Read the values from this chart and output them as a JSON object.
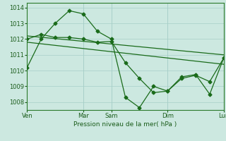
{
  "bg_color": "#cce8e0",
  "grid_color": "#a8cfc8",
  "line_color": "#1a6b1a",
  "xlabel": "Pression niveau de la mer( hPa )",
  "ylim": [
    1007.5,
    1014.3
  ],
  "yticks": [
    1008,
    1009,
    1010,
    1011,
    1012,
    1013,
    1014
  ],
  "xtick_labels": [
    "Ven",
    "Mar",
    "Sam",
    "Dim",
    "Lun"
  ],
  "xtick_positions": [
    0,
    4,
    6,
    10,
    14
  ],
  "series1": {
    "x": [
      0,
      1,
      2,
      3,
      4,
      5,
      6,
      7,
      8,
      9,
      10,
      11,
      12,
      13,
      14
    ],
    "y": [
      1010.2,
      1012.0,
      1013.0,
      1013.8,
      1013.6,
      1012.5,
      1012.0,
      1008.3,
      1007.65,
      1009.0,
      1008.7,
      1009.6,
      1009.75,
      1008.5,
      1010.8
    ]
  },
  "series2": {
    "x": [
      0,
      1,
      2,
      3,
      4,
      5,
      6,
      7,
      8,
      9,
      10,
      11,
      12,
      13,
      14
    ],
    "y": [
      1012.0,
      1012.3,
      1012.1,
      1012.1,
      1012.0,
      1011.8,
      1011.85,
      1010.5,
      1009.5,
      1008.6,
      1008.7,
      1009.5,
      1009.7,
      1009.3,
      1010.8
    ]
  },
  "trend1": {
    "x": [
      0,
      14
    ],
    "y": [
      1012.2,
      1011.0
    ]
  },
  "trend2": {
    "x": [
      0,
      14
    ],
    "y": [
      1011.8,
      1010.4
    ]
  },
  "vline_positions": [
    4,
    6,
    10,
    14
  ],
  "xlim": [
    0,
    14
  ]
}
